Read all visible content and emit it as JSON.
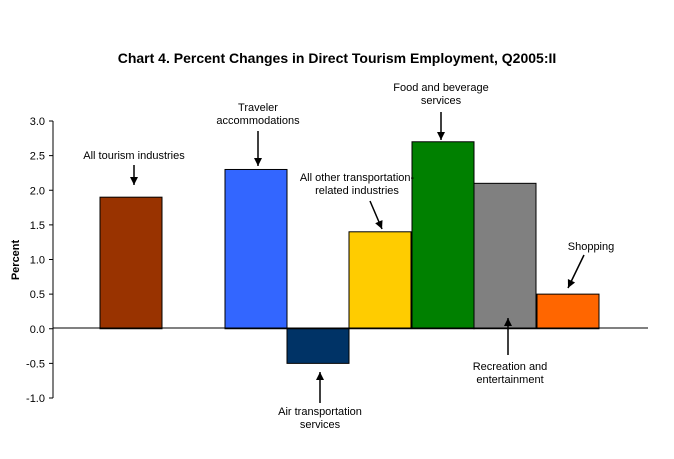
{
  "chart_data": {
    "type": "bar",
    "title": "Chart 4.  Percent Changes in Direct Tourism Employment, Q2005:II",
    "ylabel": "Percent",
    "xlabel": "",
    "ylim": [
      -1.0,
      3.0
    ],
    "yticks": [
      "3.0",
      "2.5",
      "2.0",
      "1.5",
      "1.0",
      "0.5",
      "0.0",
      "-0.5",
      "-1.0"
    ],
    "grid": false,
    "legend": "none",
    "series": [
      {
        "label_lines": [
          "All tourism industries"
        ],
        "value": 1.9,
        "color": "#993300",
        "label_side": "above"
      },
      {
        "label_lines": [
          "Traveler",
          "accommodations"
        ],
        "value": 2.3,
        "color": "#3366FF",
        "label_side": "above"
      },
      {
        "label_lines": [
          "Air transportation",
          "services"
        ],
        "value": -0.5,
        "color": "#003366",
        "label_side": "below"
      },
      {
        "label_lines": [
          "All other transportation-",
          "related industries"
        ],
        "value": 1.4,
        "color": "#FFCC00",
        "label_side": "above"
      },
      {
        "label_lines": [
          "Food and beverage",
          "services"
        ],
        "value": 2.7,
        "color": "#008000",
        "label_side": "above"
      },
      {
        "label_lines": [
          "Recreation and",
          "entertainment"
        ],
        "value": 2.1,
        "color": "#808080",
        "label_side": "below"
      },
      {
        "label_lines": [
          "Shopping"
        ],
        "value": 0.5,
        "color": "#FF6600",
        "label_side": "above"
      }
    ]
  }
}
